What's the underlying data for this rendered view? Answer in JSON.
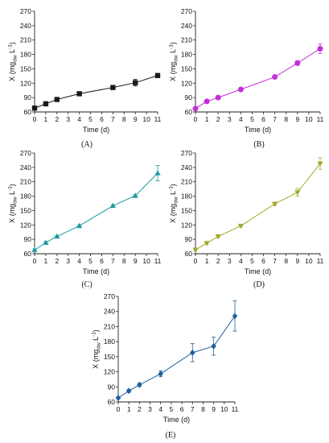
{
  "chart_data": [
    {
      "type": "line",
      "panel_label": "(A)",
      "xlabel": "Time (d)",
      "ylabel": "X (mgdw L-1)",
      "ylabel_parts": {
        "main": "X (mg",
        "sub": "dw",
        "mid": " L",
        "sup": "-1",
        "end": ")"
      },
      "x": [
        0,
        1,
        2,
        4,
        7,
        9,
        11
      ],
      "xticks": [
        0,
        1,
        2,
        3,
        4,
        5,
        6,
        7,
        8,
        9,
        10,
        11
      ],
      "xlim": [
        0,
        11
      ],
      "yticks": [
        60,
        90,
        120,
        150,
        180,
        210,
        240,
        270
      ],
      "ylim": [
        60,
        270
      ],
      "series": [
        {
          "values": [
            68,
            77,
            86,
            98,
            111,
            121,
            136
          ],
          "errors": [
            1,
            1.5,
            1.5,
            2,
            2,
            7,
            2
          ],
          "color": "#1a1a1a",
          "marker": "square"
        }
      ]
    },
    {
      "type": "line",
      "panel_label": "(B)",
      "xlabel": "Time (d)",
      "ylabel": "X (mgdw L-1)",
      "ylabel_parts": {
        "main": "X (mg",
        "sub": "dw",
        "mid": " L",
        "sup": "-1",
        "end": ")"
      },
      "x": [
        0,
        1,
        2,
        4,
        7,
        9,
        11
      ],
      "xticks": [
        0,
        1,
        2,
        3,
        4,
        5,
        6,
        7,
        8,
        9,
        10,
        11
      ],
      "xlim": [
        0,
        11
      ],
      "yticks": [
        60,
        90,
        120,
        150,
        180,
        210,
        240,
        270
      ],
      "ylim": [
        60,
        270
      ],
      "series": [
        {
          "values": [
            67,
            82,
            90,
            107,
            133,
            162,
            192
          ],
          "errors": [
            2,
            2,
            2,
            3,
            3,
            5,
            10
          ],
          "color": "#c430d8",
          "marker": "circle"
        }
      ]
    },
    {
      "type": "line",
      "panel_label": "(C)",
      "xlabel": "Time (d)",
      "ylabel": "X (mgdw L-1)",
      "ylabel_parts": {
        "main": "X (mg",
        "sub": "dw",
        "mid": " L",
        "sup": "-1",
        "end": ")"
      },
      "x": [
        0,
        1,
        2,
        4,
        7,
        9,
        11
      ],
      "xticks": [
        0,
        1,
        2,
        3,
        4,
        5,
        6,
        7,
        8,
        9,
        10,
        11
      ],
      "xlim": [
        0,
        11
      ],
      "yticks": [
        60,
        90,
        120,
        150,
        180,
        210,
        240,
        270
      ],
      "ylim": [
        60,
        270
      ],
      "series": [
        {
          "values": [
            68,
            83,
            96,
            118,
            160,
            181,
            228
          ],
          "errors": [
            2,
            2,
            2,
            2,
            2,
            2,
            16
          ],
          "color": "#1b9aa0",
          "marker": "triangle"
        }
      ]
    },
    {
      "type": "line",
      "panel_label": "(D)",
      "xlabel": "Time (d)",
      "ylabel": "X (mgdw L-1)",
      "ylabel_parts": {
        "main": "X (mg",
        "sub": "dw",
        "mid": " L",
        "sup": "-1",
        "end": ")"
      },
      "x": [
        0,
        1,
        2,
        4,
        7,
        9,
        11
      ],
      "xticks": [
        0,
        1,
        2,
        3,
        4,
        5,
        6,
        7,
        8,
        9,
        10,
        11
      ],
      "xlim": [
        0,
        11
      ],
      "yticks": [
        60,
        90,
        120,
        150,
        180,
        210,
        240,
        270
      ],
      "ylim": [
        60,
        270
      ],
      "series": [
        {
          "values": [
            68,
            82,
            96,
            118,
            164,
            188,
            248
          ],
          "errors": [
            2,
            2,
            2,
            2,
            3,
            8,
            12
          ],
          "color": "#a3a82e",
          "marker": "triangle-down"
        }
      ]
    },
    {
      "type": "line",
      "panel_label": "(E)",
      "xlabel": "Time (d)",
      "ylabel": "X (mgdw L-1)",
      "ylabel_parts": {
        "main": "X (mg",
        "sub": "dw",
        "mid": " L",
        "sup": "-1",
        "end": ")"
      },
      "x": [
        0,
        1,
        2,
        4,
        7,
        9,
        11
      ],
      "xticks": [
        0,
        1,
        2,
        3,
        4,
        5,
        6,
        7,
        8,
        9,
        10,
        11
      ],
      "xlim": [
        0,
        11
      ],
      "yticks": [
        60,
        90,
        120,
        150,
        180,
        210,
        240,
        270
      ],
      "ylim": [
        60,
        270
      ],
      "series": [
        {
          "values": [
            68,
            82,
            94,
            116,
            158,
            171,
            231
          ],
          "errors": [
            2,
            3,
            3,
            6,
            18,
            18,
            30
          ],
          "color": "#1f5f9e",
          "marker": "diamond"
        }
      ]
    }
  ]
}
